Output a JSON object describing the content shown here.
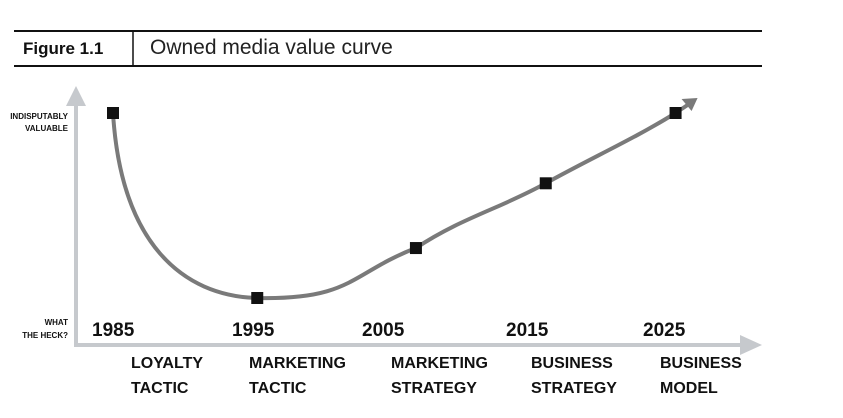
{
  "figure": {
    "label": "Figure 1.1",
    "title": "Owned media value curve"
  },
  "chart_data": {
    "type": "line",
    "title": "Owned media value curve",
    "y_axis": {
      "top_label": [
        "INDISPUTABLY",
        "VALUABLE"
      ],
      "bottom_label": [
        "WHAT",
        "THE HECK?"
      ],
      "range": [
        0,
        1
      ]
    },
    "x_axis": {
      "ticks": [
        "1985",
        "1995",
        "2005",
        "2015",
        "2025"
      ],
      "range": [
        1985,
        2025
      ]
    },
    "categories": [
      [
        "LOYALTY",
        "TACTIC"
      ],
      [
        "MARKETING",
        "TACTIC"
      ],
      [
        "MARKETING",
        "STRATEGY"
      ],
      [
        "BUSINESS",
        "STRATEGY"
      ],
      [
        "BUSINESS",
        "MODEL"
      ]
    ],
    "series": [
      {
        "name": "Owned media value",
        "points": [
          {
            "x": 1985,
            "y": 1.0
          },
          {
            "x": 1995,
            "y": 0.0
          },
          {
            "x": 2006,
            "y": 0.27
          },
          {
            "x": 2015,
            "y": 0.62
          },
          {
            "x": 2024,
            "y": 1.0
          }
        ]
      }
    ],
    "colors": {
      "curve": "#7a7a7a",
      "axis": "#c6c9cd",
      "marker": "#111111",
      "rule": "#111111"
    }
  }
}
